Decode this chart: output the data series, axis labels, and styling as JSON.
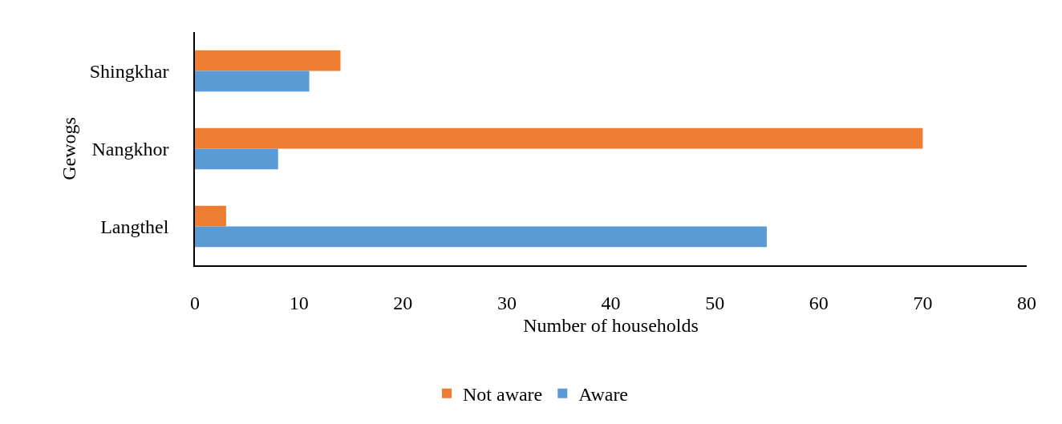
{
  "chart_data": {
    "type": "bar",
    "orientation": "horizontal",
    "xlabel": "Number of households",
    "ylabel": "Gewogs",
    "categories": [
      "Shingkhar",
      "Nangkhor",
      "Langthel"
    ],
    "series": [
      {
        "name": "Not aware",
        "color": "#ed7d31",
        "values": [
          14,
          70,
          3
        ]
      },
      {
        "name": "Aware",
        "color": "#5b9bd5",
        "values": [
          11,
          8,
          55
        ]
      }
    ],
    "xlim": [
      0,
      80
    ],
    "xticks": [
      0,
      10,
      20,
      30,
      40,
      50,
      60,
      70,
      80
    ],
    "legend": "bottom"
  }
}
